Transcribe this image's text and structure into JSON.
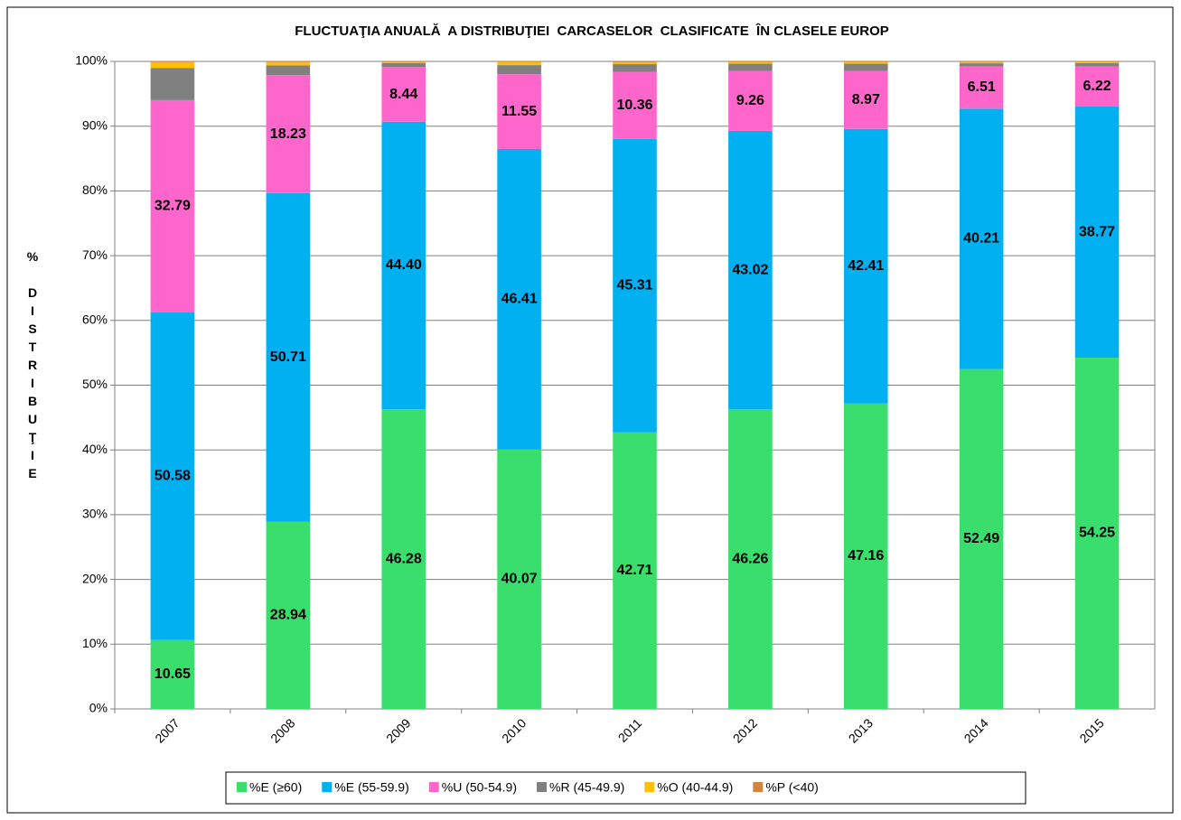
{
  "chart_data": {
    "type": "stacked_bar",
    "title": "FLUCTUAŢIA ANUALĂ  A DISTRIBUŢIEI  CARCASELOR  CLASIFICATE  ÎN CLASELE EUROP",
    "y_label": "% DISTRIBUŢIE",
    "categories": [
      "2007",
      "2008",
      "2009",
      "2010",
      "2011",
      "2012",
      "2013",
      "2014",
      "2015"
    ],
    "series": [
      {
        "name": "%E (≥60)",
        "color": "#39de6c",
        "values": [
          10.65,
          28.94,
          46.28,
          40.07,
          42.71,
          46.26,
          47.16,
          52.49,
          54.25
        ],
        "value_labels": [
          "10.65",
          "28.94",
          "46.28",
          "40.07",
          "42.71",
          "46.26",
          "47.16",
          "52.49",
          "54.25"
        ]
      },
      {
        "name": "%E (55-59.9)",
        "color": "#00b0f0",
        "values": [
          50.58,
          50.71,
          44.4,
          46.41,
          45.31,
          43.02,
          42.41,
          40.21,
          38.77
        ],
        "value_labels": [
          "50.58",
          "50.71",
          "44.40",
          "46.41",
          "45.31",
          "43.02",
          "42.41",
          "40.21",
          "38.77"
        ]
      },
      {
        "name": "%U (50-54.9)",
        "color": "#ff66cc",
        "values": [
          32.79,
          18.23,
          8.44,
          11.55,
          10.36,
          9.26,
          8.97,
          6.51,
          6.22
        ],
        "value_labels": [
          "32.79",
          "18.23",
          "8.44",
          "11.55",
          "10.36",
          "9.26",
          "8.97",
          "6.51",
          "6.22"
        ]
      },
      {
        "name": "%R (45-49.9)",
        "color": "#808080",
        "values": [
          4.98,
          1.5,
          0.6,
          1.4,
          1.2,
          1.1,
          1.1,
          0.5,
          0.5
        ]
      },
      {
        "name": "%O (40-44.9)",
        "color": "#ffc000",
        "values": [
          0.9,
          0.52,
          0.2,
          0.5,
          0.3,
          0.3,
          0.3,
          0.2,
          0.2
        ]
      },
      {
        "name": "%P (<40)",
        "color": "#d58440",
        "values": [
          0.1,
          0.1,
          0.08,
          0.07,
          0.1,
          0.06,
          0.06,
          0.09,
          0.06
        ]
      }
    ],
    "ylim": [
      0,
      100
    ],
    "yticks": [
      {
        "value": 0,
        "label": "0%"
      },
      {
        "value": 10,
        "label": "10%"
      },
      {
        "value": 20,
        "label": "20%"
      },
      {
        "value": 30,
        "label": "30%"
      },
      {
        "value": 40,
        "label": "40%"
      },
      {
        "value": 50,
        "label": "50%"
      },
      {
        "value": 60,
        "label": "60%"
      },
      {
        "value": 70,
        "label": "70%"
      },
      {
        "value": 80,
        "label": "80%"
      },
      {
        "value": 90,
        "label": "90%"
      },
      {
        "value": 100,
        "label": "100%"
      }
    ],
    "grid": true,
    "legend": "bottom"
  }
}
